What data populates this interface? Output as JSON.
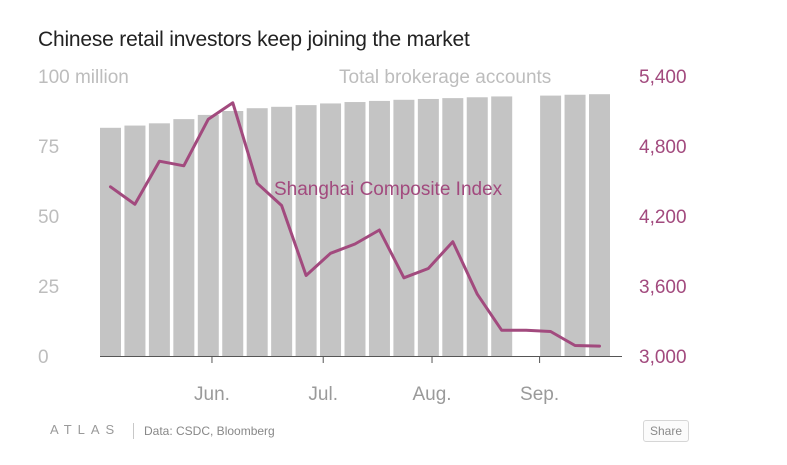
{
  "title": "Chinese retail investors keep joining the market",
  "chart_data": {
    "type": "bar+line",
    "series": [
      {
        "name": "Total brokerage accounts",
        "kind": "bar",
        "axis": "left",
        "unit": "100 million",
        "values": [
          81.5,
          82.3,
          83.1,
          84.6,
          86.1,
          87.5,
          88.5,
          89.0,
          89.6,
          90.2,
          90.7,
          91.1,
          91.5,
          91.8,
          92.1,
          92.4,
          92.7,
          null,
          93.0,
          93.3,
          93.5
        ]
      },
      {
        "name": "Shanghai Composite Index",
        "kind": "line",
        "axis": "right",
        "values": [
          4450,
          4300,
          4670,
          4630,
          5030,
          5170,
          4480,
          4290,
          3690,
          3880,
          3960,
          4080,
          3670,
          3750,
          3980,
          3530,
          3220,
          3220,
          3210,
          3090,
          3085
        ]
      }
    ],
    "left_axis": {
      "label": "100 million",
      "ylim": [
        0,
        100
      ],
      "ticks": [
        "0",
        "25",
        "50",
        "75",
        "100 million"
      ]
    },
    "right_axis": {
      "ylim": [
        3000,
        5400
      ],
      "ticks": [
        "3,000",
        "3,600",
        "4,200",
        "4,800",
        "5,400"
      ]
    },
    "x_labels": [
      "Jun.",
      "Jul.",
      "Aug.",
      "Sep."
    ],
    "annotations": [
      "Total brokerage accounts",
      "Shanghai Composite Index"
    ],
    "colors": {
      "bar": "#c4c4c4",
      "line": "#a24a7e",
      "left_axis_text": "#bdbdbd",
      "right_axis_text": "#a24a7e",
      "axis_line": "#555555"
    }
  },
  "footer": {
    "logo": "ATLAS",
    "source": "Data: CSDC, Bloomberg",
    "share_label": "Share"
  }
}
